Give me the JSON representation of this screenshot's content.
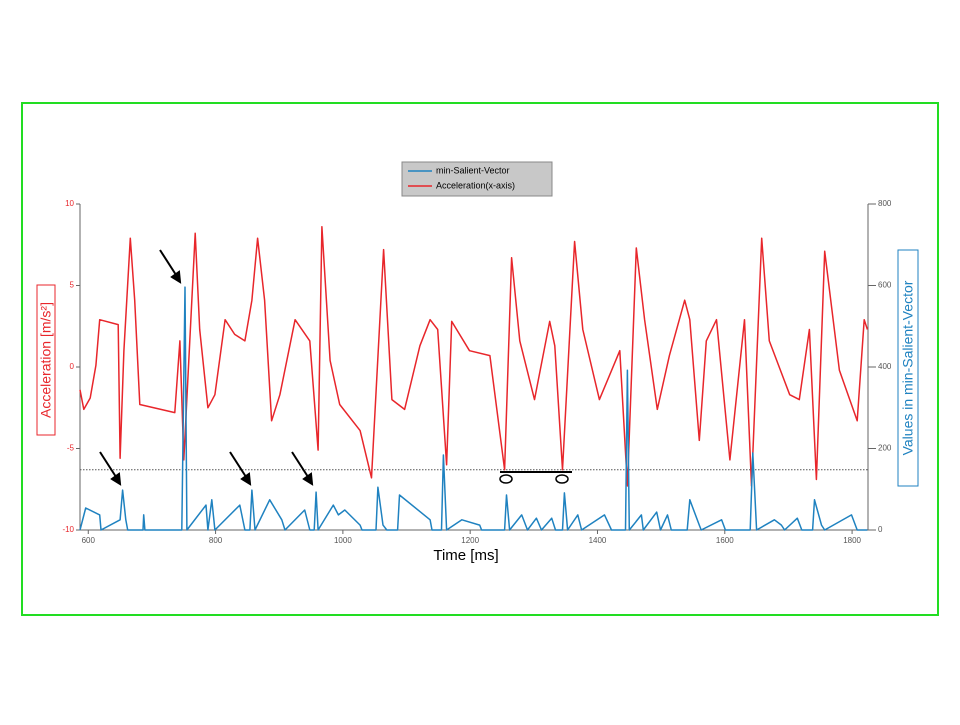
{
  "chart_data": {
    "type": "line",
    "xlabel": "Time [ms]",
    "ylabel": "Acceleration [m/s²]",
    "y2label": "Values in min-Salient-Vector",
    "xlim": [
      587,
      1825
    ],
    "xticks": [
      600,
      800,
      1000,
      1200,
      1400,
      1600,
      1800
    ],
    "ylim": [
      -10,
      10
    ],
    "yticks": [
      -10,
      -5,
      0,
      5,
      10
    ],
    "y2lim": [
      0,
      800
    ],
    "y2ticks": [
      0,
      200,
      400,
      600,
      800
    ],
    "hline": -6.3,
    "series": [
      {
        "name": "Acceleration(x-axis)",
        "color": "#e8262b",
        "axis": "y",
        "x": [
          587,
          593,
          603,
          612,
          618,
          647,
          650,
          656,
          666,
          673,
          681,
          736,
          744,
          750,
          768,
          775,
          788,
          799,
          815,
          830,
          846,
          857,
          866,
          877,
          888,
          901,
          925,
          948,
          961,
          967,
          980,
          995,
          1027,
          1045,
          1064,
          1077,
          1097,
          1121,
          1137,
          1149,
          1163,
          1171,
          1199,
          1231,
          1254,
          1265,
          1278,
          1301,
          1325,
          1333,
          1345,
          1364,
          1377,
          1403,
          1435,
          1447,
          1461,
          1474,
          1494,
          1513,
          1537,
          1545,
          1560,
          1571,
          1587,
          1608,
          1631,
          1642,
          1658,
          1670,
          1702,
          1717,
          1733,
          1744,
          1757,
          1780,
          1808,
          1819,
          1824
        ],
        "values": [
          -1.4,
          -2.6,
          -1.9,
          0.1,
          2.9,
          2.6,
          -5.6,
          1,
          7.9,
          4.1,
          -2.3,
          -2.8,
          1.6,
          -5.7,
          8.2,
          2.3,
          -2.5,
          -1.7,
          2.9,
          2,
          1.6,
          4.1,
          7.9,
          4.1,
          -3.3,
          -1.7,
          2.9,
          1.6,
          -5.1,
          8.6,
          0.4,
          -2.3,
          -3.9,
          -6.8,
          7.2,
          -2,
          -2.6,
          1.3,
          2.9,
          2.3,
          -6,
          2.8,
          1,
          0.7,
          -6.3,
          6.7,
          1.6,
          -2,
          2.8,
          1.3,
          -6.3,
          7.7,
          2.3,
          -2,
          1,
          -7.3,
          7.3,
          2.9,
          -2.6,
          0.7,
          4.1,
          2.9,
          -4.5,
          1.6,
          2.9,
          -5.7,
          2.9,
          -7.3,
          7.9,
          1.6,
          -1.7,
          -2,
          2.3,
          -6.9,
          7.1,
          -0.2,
          -3.3,
          2.9,
          2.3
        ]
      },
      {
        "name": "min-Salient-Vector",
        "color": "#1f82c0",
        "axis": "y2",
        "x": [
          587,
          596,
          618,
          620,
          650,
          654,
          659,
          662,
          686,
          687,
          689,
          747,
          752,
          755,
          785,
          788,
          794,
          799,
          838,
          846,
          854,
          857,
          862,
          885,
          904,
          909,
          940,
          948,
          955,
          958,
          961,
          985,
          993,
          1003,
          1027,
          1030,
          1052,
          1055,
          1063,
          1069,
          1086,
          1089,
          1137,
          1140,
          1155,
          1158,
          1163,
          1187,
          1215,
          1218,
          1254,
          1257,
          1262,
          1281,
          1290,
          1304,
          1312,
          1328,
          1334,
          1345,
          1348,
          1353,
          1369,
          1375,
          1411,
          1422,
          1444,
          1447,
          1450,
          1469,
          1472,
          1493,
          1499,
          1510,
          1516,
          1541,
          1545,
          1560,
          1563,
          1595,
          1601,
          1640,
          1644,
          1650,
          1678,
          1689,
          1694,
          1714,
          1721,
          1738,
          1741,
          1752,
          1757,
          1799,
          1808,
          1824
        ],
        "values": [
          0,
          54,
          37,
          0,
          25,
          98,
          25,
          0,
          0,
          37,
          0,
          0,
          596,
          0,
          61,
          0,
          74,
          0,
          61,
          0,
          0,
          98,
          0,
          74,
          25,
          0,
          49,
          0,
          0,
          93,
          0,
          61,
          37,
          49,
          12,
          0,
          0,
          105,
          12,
          0,
          0,
          86,
          25,
          0,
          0,
          184,
          0,
          25,
          12,
          0,
          0,
          86,
          0,
          37,
          0,
          29,
          0,
          29,
          0,
          0,
          91,
          0,
          37,
          0,
          37,
          0,
          0,
          392,
          0,
          37,
          0,
          44,
          0,
          37,
          0,
          0,
          74,
          12,
          0,
          25,
          0,
          0,
          189,
          0,
          25,
          12,
          0,
          29,
          0,
          0,
          74,
          12,
          0,
          37,
          0,
          0
        ]
      }
    ]
  }
}
